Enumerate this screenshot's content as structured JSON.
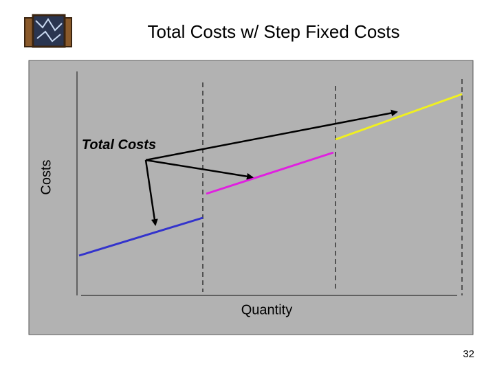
{
  "header": {
    "title": "Total Costs w/ Step Fixed Costs"
  },
  "diagram": {
    "y_label": "Costs",
    "x_label": "Quantity",
    "annotation": "Total Costs"
  },
  "footer": {
    "page_number": "32"
  }
}
